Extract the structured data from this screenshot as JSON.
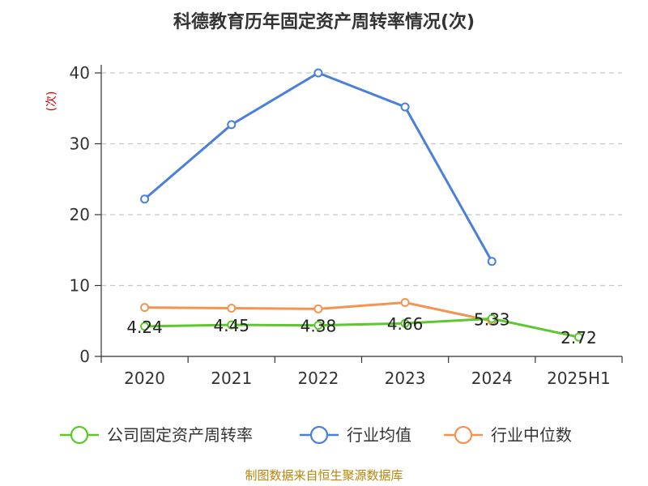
{
  "chart_data": {
    "type": "line",
    "title": "科德教育历年固定资产周转率情况(次)",
    "ylabel": "(次)",
    "categories": [
      "2020",
      "2021",
      "2022",
      "2023",
      "2024",
      "2025H1"
    ],
    "ylim": [
      0,
      40
    ],
    "yticks": [
      0,
      10,
      20,
      30,
      40
    ],
    "grid": true,
    "legend_position": "bottom",
    "series": [
      {
        "name": "公司固定资产周转率",
        "color": "#5dc72c",
        "values": [
          4.24,
          4.45,
          4.38,
          4.66,
          5.33,
          2.72
        ],
        "labels": [
          "4.24",
          "4.45",
          "4.38",
          "4.66",
          "5.33",
          "2.72"
        ]
      },
      {
        "name": "行业均值",
        "color": "#4a7fdc",
        "values": [
          22.2,
          32.7,
          40.0,
          35.2,
          13.4,
          null
        ]
      },
      {
        "name": "行业中位数",
        "color": "#f59352",
        "values": [
          6.9,
          6.8,
          6.7,
          7.6,
          5.0,
          null
        ]
      }
    ]
  },
  "footer": {
    "source": "制图数据来自恒生聚源数据库"
  }
}
